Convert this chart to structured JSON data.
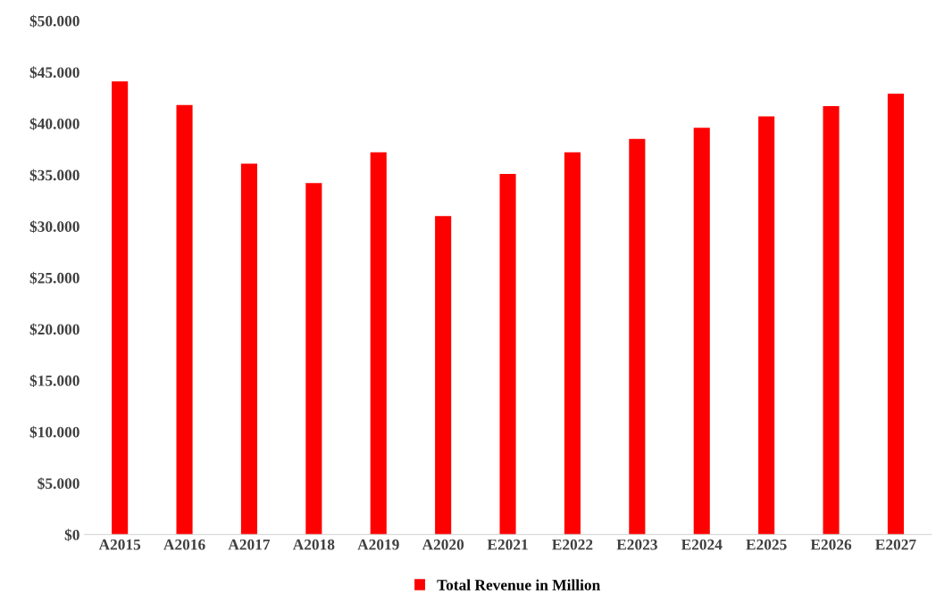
{
  "chart_data": {
    "type": "bar",
    "categories": [
      "A2015",
      "A2016",
      "A2017",
      "A2018",
      "A2019",
      "A2020",
      "E2021",
      "E2022",
      "E2023",
      "E2024",
      "E2025",
      "E2026",
      "E2027"
    ],
    "series": [
      {
        "name": "Total Revenue in Million",
        "color": "#ff0000",
        "values": [
          44100,
          41800,
          36100,
          34200,
          37200,
          31000,
          35100,
          37200,
          38500,
          39600,
          40700,
          41700,
          42900
        ]
      }
    ],
    "ylim": [
      0,
      50000
    ],
    "yticks": [
      {
        "value": 0,
        "label": "$0"
      },
      {
        "value": 5000,
        "label": "$5.000"
      },
      {
        "value": 10000,
        "label": "$10.000"
      },
      {
        "value": 15000,
        "label": "$15.000"
      },
      {
        "value": 20000,
        "label": "$20.000"
      },
      {
        "value": 25000,
        "label": "$25.000"
      },
      {
        "value": 30000,
        "label": "$30.000"
      },
      {
        "value": 35000,
        "label": "$35.000"
      },
      {
        "value": 40000,
        "label": "$40.000"
      },
      {
        "value": 45000,
        "label": "$45.000"
      },
      {
        "value": 50000,
        "label": "$50.000"
      }
    ],
    "grid": false,
    "legend": "bottom"
  }
}
